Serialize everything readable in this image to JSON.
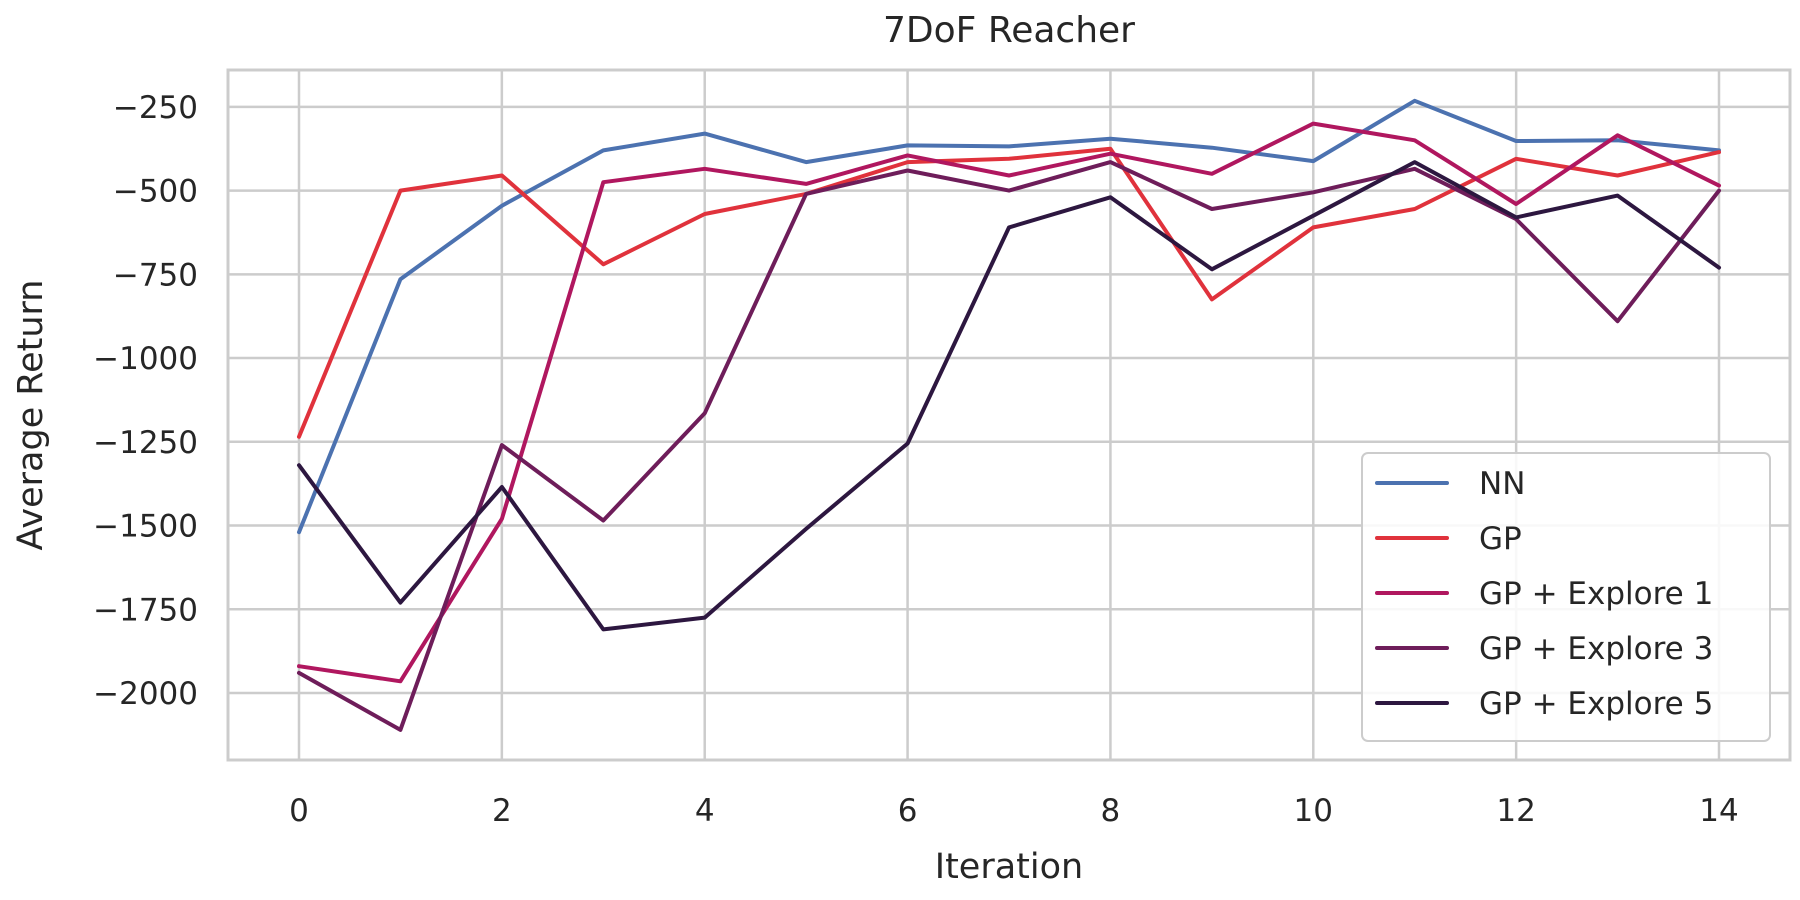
{
  "chart_data": {
    "type": "line",
    "title": "7DoF Reacher",
    "xlabel": "Iteration",
    "ylabel": "Average Return",
    "xlim": [
      -0.7,
      14.7
    ],
    "ylim": [
      -2200,
      -140
    ],
    "xticks": [
      0,
      2,
      4,
      6,
      8,
      10,
      12,
      14
    ],
    "yticks": [
      -2000,
      -1750,
      -1500,
      -1250,
      -1000,
      -750,
      -500,
      -250
    ],
    "ytick_labels": [
      "−2000",
      "−1750",
      "−1500",
      "−1250",
      "−1000",
      "−750",
      "−500",
      "−250"
    ],
    "grid": true,
    "legend_position": "lower-right",
    "x": [
      0,
      1,
      2,
      3,
      4,
      5,
      6,
      7,
      8,
      9,
      10,
      11,
      12,
      13,
      14
    ],
    "series": [
      {
        "name": "NN",
        "color": "#4c72b0",
        "values": [
          -1520,
          -765,
          -545,
          -380,
          -330,
          -415,
          -365,
          -368,
          -345,
          -372,
          -412,
          -232,
          -352,
          -350,
          -380
        ]
      },
      {
        "name": "GP",
        "color": "#e0323c",
        "values": [
          -1235,
          -500,
          -455,
          -720,
          -570,
          -510,
          -415,
          -405,
          -375,
          -825,
          -610,
          -555,
          -405,
          -455,
          -385
        ]
      },
      {
        "name": "GP + Explore 1",
        "color": "#b0175f",
        "values": [
          -1920,
          -1965,
          -1480,
          -475,
          -435,
          -480,
          -395,
          -455,
          -390,
          -450,
          -300,
          -350,
          -540,
          -335,
          -485
        ]
      },
      {
        "name": "GP + Explore 3",
        "color": "#6e1d5a",
        "values": [
          -1940,
          -2110,
          -1260,
          -1485,
          -1165,
          -510,
          -440,
          -500,
          -415,
          -555,
          -505,
          -435,
          -585,
          -890,
          -500
        ]
      },
      {
        "name": "GP + Explore 5",
        "color": "#2d1740",
        "values": [
          -1320,
          -1730,
          -1385,
          -1810,
          -1775,
          -1510,
          -1255,
          -610,
          -520,
          -735,
          -575,
          -415,
          -580,
          -515,
          -730
        ]
      }
    ]
  }
}
